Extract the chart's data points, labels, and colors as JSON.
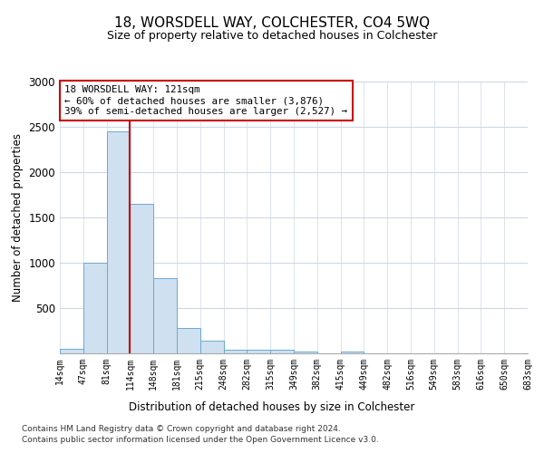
{
  "title": "18, WORSDELL WAY, COLCHESTER, CO4 5WQ",
  "subtitle": "Size of property relative to detached houses in Colchester",
  "xlabel": "Distribution of detached houses by size in Colchester",
  "ylabel": "Number of detached properties",
  "bar_values": [
    55,
    1000,
    2450,
    1650,
    830,
    280,
    140,
    45,
    45,
    45,
    25,
    0,
    20,
    0,
    0,
    0,
    0,
    0,
    0,
    0
  ],
  "categories": [
    "14sqm",
    "47sqm",
    "81sqm",
    "114sqm",
    "148sqm",
    "181sqm",
    "215sqm",
    "248sqm",
    "282sqm",
    "315sqm",
    "349sqm",
    "382sqm",
    "415sqm",
    "449sqm",
    "482sqm",
    "516sqm",
    "549sqm",
    "583sqm",
    "616sqm",
    "650sqm",
    "683sqm"
  ],
  "bar_color": "#cfe0f0",
  "bar_edge_color": "#6aaad4",
  "vline_x": 2.5,
  "vline_color": "#c00000",
  "annotation_title": "18 WORSDELL WAY: 121sqm",
  "annotation_line1": "← 60% of detached houses are smaller (3,876)",
  "annotation_line2": "39% of semi-detached houses are larger (2,527) →",
  "annotation_box_color": "#cc0000",
  "ylim": [
    0,
    3000
  ],
  "yticks": [
    0,
    500,
    1000,
    1500,
    2000,
    2500,
    3000
  ],
  "footer1": "Contains HM Land Registry data © Crown copyright and database right 2024.",
  "footer2": "Contains public sector information licensed under the Open Government Licence v3.0.",
  "background_color": "#ffffff",
  "grid_color": "#cdd8e8"
}
